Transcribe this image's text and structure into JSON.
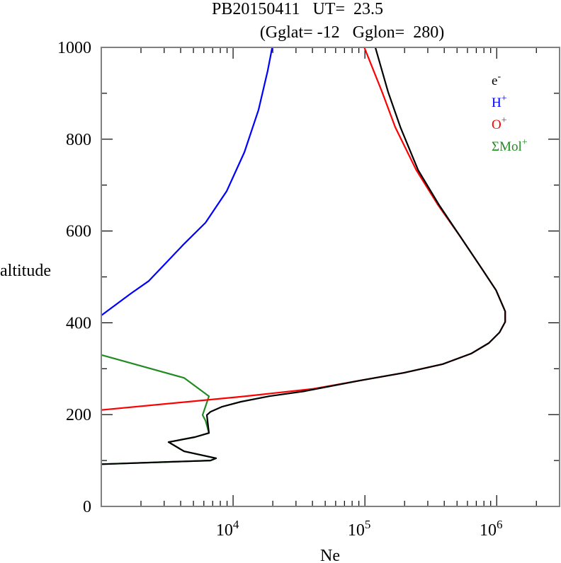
{
  "chart_data": {
    "type": "line",
    "title": "PB20150411   UT=  23.5",
    "subtitle": "(Gglat= -12   Gglon=  280)",
    "xlabel": "Ne",
    "ylabel": "altitude",
    "xscale": "log",
    "xlim": [
      1000,
      3000000
    ],
    "ylim": [
      0,
      1000
    ],
    "yticks": [
      0,
      200,
      400,
      600,
      800,
      1000
    ],
    "ytick_labels": [
      "0",
      "200",
      "400",
      "600",
      "800",
      "1000"
    ],
    "xticks": [
      10000,
      100000,
      1000000
    ],
    "xtick_labels": [
      {
        "base": "10",
        "exp": "4"
      },
      {
        "base": "10",
        "exp": "5"
      },
      {
        "base": "10",
        "exp": "6"
      }
    ],
    "legend_position": "top-right",
    "series": [
      {
        "name": "e-",
        "label_base": "e",
        "label_sup": "-",
        "color": "#000000",
        "points": [
          [
            1000,
            92
          ],
          [
            6730,
            100
          ],
          [
            7430,
            105
          ],
          [
            4250,
            120
          ],
          [
            3240,
            140
          ],
          [
            5130,
            151
          ],
          [
            6560,
            160
          ],
          [
            6320,
            199
          ],
          [
            6730,
            206
          ],
          [
            8200,
            217
          ],
          [
            11460,
            228
          ],
          [
            18800,
            240
          ],
          [
            34900,
            251
          ],
          [
            98900,
            276
          ],
          [
            198000,
            291
          ],
          [
            390000,
            310
          ],
          [
            640000,
            333
          ],
          [
            873000,
            356
          ],
          [
            1050000,
            379
          ],
          [
            1160000,
            402
          ],
          [
            1160000,
            425
          ],
          [
            989000,
            471
          ],
          [
            771000,
            518
          ],
          [
            532000,
            587
          ],
          [
            367000,
            656
          ],
          [
            253000,
            733
          ],
          [
            186000,
            826
          ],
          [
            150000,
            903
          ],
          [
            120000,
            1000
          ]
        ]
      },
      {
        "name": "H+",
        "label_base": "H",
        "label_sup": "+",
        "color": "#0000ff",
        "points": [
          [
            1000,
            416
          ],
          [
            1680,
            464
          ],
          [
            2290,
            491
          ],
          [
            4250,
            572
          ],
          [
            6170,
            618
          ],
          [
            8950,
            687
          ],
          [
            12200,
            772
          ],
          [
            15600,
            864
          ],
          [
            18300,
            949
          ],
          [
            19800,
            1000
          ]
        ]
      },
      {
        "name": "O+",
        "label_base": "O",
        "label_sup": "+",
        "color": "#ff0000",
        "points": [
          [
            1000,
            210
          ],
          [
            11460,
            239
          ],
          [
            40000,
            256
          ],
          [
            98900,
            276
          ],
          [
            198000,
            291
          ],
          [
            390000,
            310
          ],
          [
            640000,
            333
          ],
          [
            873000,
            356
          ],
          [
            1050000,
            379
          ],
          [
            1160000,
            402
          ],
          [
            1160000,
            425
          ],
          [
            989000,
            471
          ],
          [
            771000,
            518
          ],
          [
            532000,
            587
          ],
          [
            360000,
            656
          ],
          [
            245000,
            733
          ],
          [
            170000,
            826
          ],
          [
            135000,
            903
          ],
          [
            98900,
            1000
          ]
        ]
      },
      {
        "name": "ΣMol+",
        "label_base": "ΣMol",
        "label_sup": "+",
        "color": "#228b22",
        "points": [
          [
            1000,
            92
          ],
          [
            6730,
            100
          ],
          [
            7430,
            105
          ],
          [
            4250,
            120
          ],
          [
            3240,
            140
          ],
          [
            5130,
            151
          ],
          [
            6560,
            160
          ],
          [
            6200,
            186
          ],
          [
            5870,
            199
          ],
          [
            6560,
            240
          ],
          [
            4250,
            280
          ],
          [
            1000,
            330
          ]
        ]
      }
    ]
  }
}
